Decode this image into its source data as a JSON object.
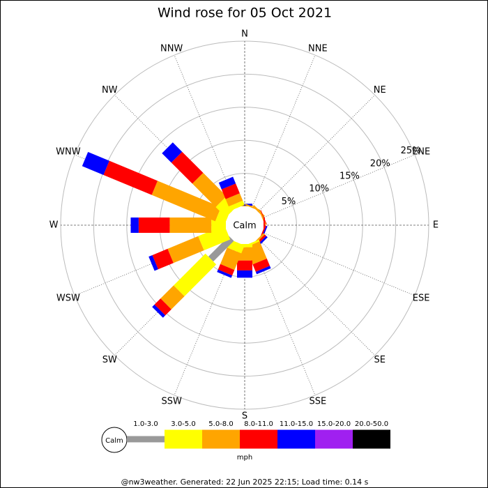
{
  "chart_data": {
    "type": "wind-rose",
    "title": "Wind rose for 05 Oct 2021",
    "directions": [
      "N",
      "NNE",
      "NE",
      "ENE",
      "E",
      "ESE",
      "SE",
      "SSE",
      "S",
      "SSW",
      "SW",
      "WSW",
      "W",
      "WNW",
      "NW",
      "NNW"
    ],
    "series": [
      {
        "name": "1.0-3.0",
        "color": "#999999",
        "values": [
          0,
          0,
          0,
          0,
          0,
          0,
          0,
          0,
          0,
          0,
          4.4,
          0,
          0,
          0,
          0,
          0
        ]
      },
      {
        "name": "3.0-5.0",
        "color": "#ffff00",
        "values": [
          0,
          0,
          0,
          0,
          0,
          0,
          0,
          0.3,
          0.5,
          1.3,
          6.8,
          4.3,
          2.2,
          1.5,
          2.2,
          0.7
        ]
      },
      {
        "name": "5.0-8.0",
        "color": "#ffa500",
        "values": [
          0.1,
          0.2,
          0.3,
          0.2,
          0,
          0,
          0.3,
          2.8,
          2.0,
          2.7,
          2.8,
          5.0,
          6.3,
          10.4,
          5.0,
          1.2
        ]
      },
      {
        "name": "8.0-11.0",
        "color": "#ff0000",
        "values": [
          0,
          0,
          0,
          0.1,
          0.2,
          0.2,
          0.3,
          1.2,
          1.5,
          0.9,
          1.3,
          2.5,
          4.7,
          7.9,
          4.5,
          1.6
        ]
      },
      {
        "name": "11.0-15.0",
        "color": "#0000ff",
        "values": [
          0.3,
          0,
          0,
          0,
          0,
          0.2,
          0.3,
          0.4,
          1.1,
          0.4,
          0.5,
          0.6,
          1.2,
          3.5,
          2.0,
          1.1
        ]
      },
      {
        "name": "15.0-20.0",
        "color": "#a020f0",
        "values": [
          0,
          0,
          0,
          0,
          0,
          0,
          0,
          0,
          0,
          0,
          0,
          0,
          0,
          0,
          0,
          0
        ]
      },
      {
        "name": "20.0-50.0",
        "color": "#000000",
        "values": [
          0,
          0,
          0,
          0,
          0,
          0,
          0,
          0,
          0,
          0,
          0,
          0,
          0,
          0,
          0,
          0
        ]
      }
    ],
    "rlim": [
      0,
      25
    ],
    "rticks": [
      {
        "value": 5,
        "label": "5%"
      },
      {
        "value": 10,
        "label": "10%"
      },
      {
        "value": 15,
        "label": "15%"
      },
      {
        "value": 20,
        "label": "20%"
      },
      {
        "value": 25,
        "label": "25%"
      }
    ],
    "calm_label": "Calm",
    "unit": "mph"
  },
  "footer": "@nw3weather. Generated: 22 Jun 2025 22:15; Load time: 0.14 s"
}
